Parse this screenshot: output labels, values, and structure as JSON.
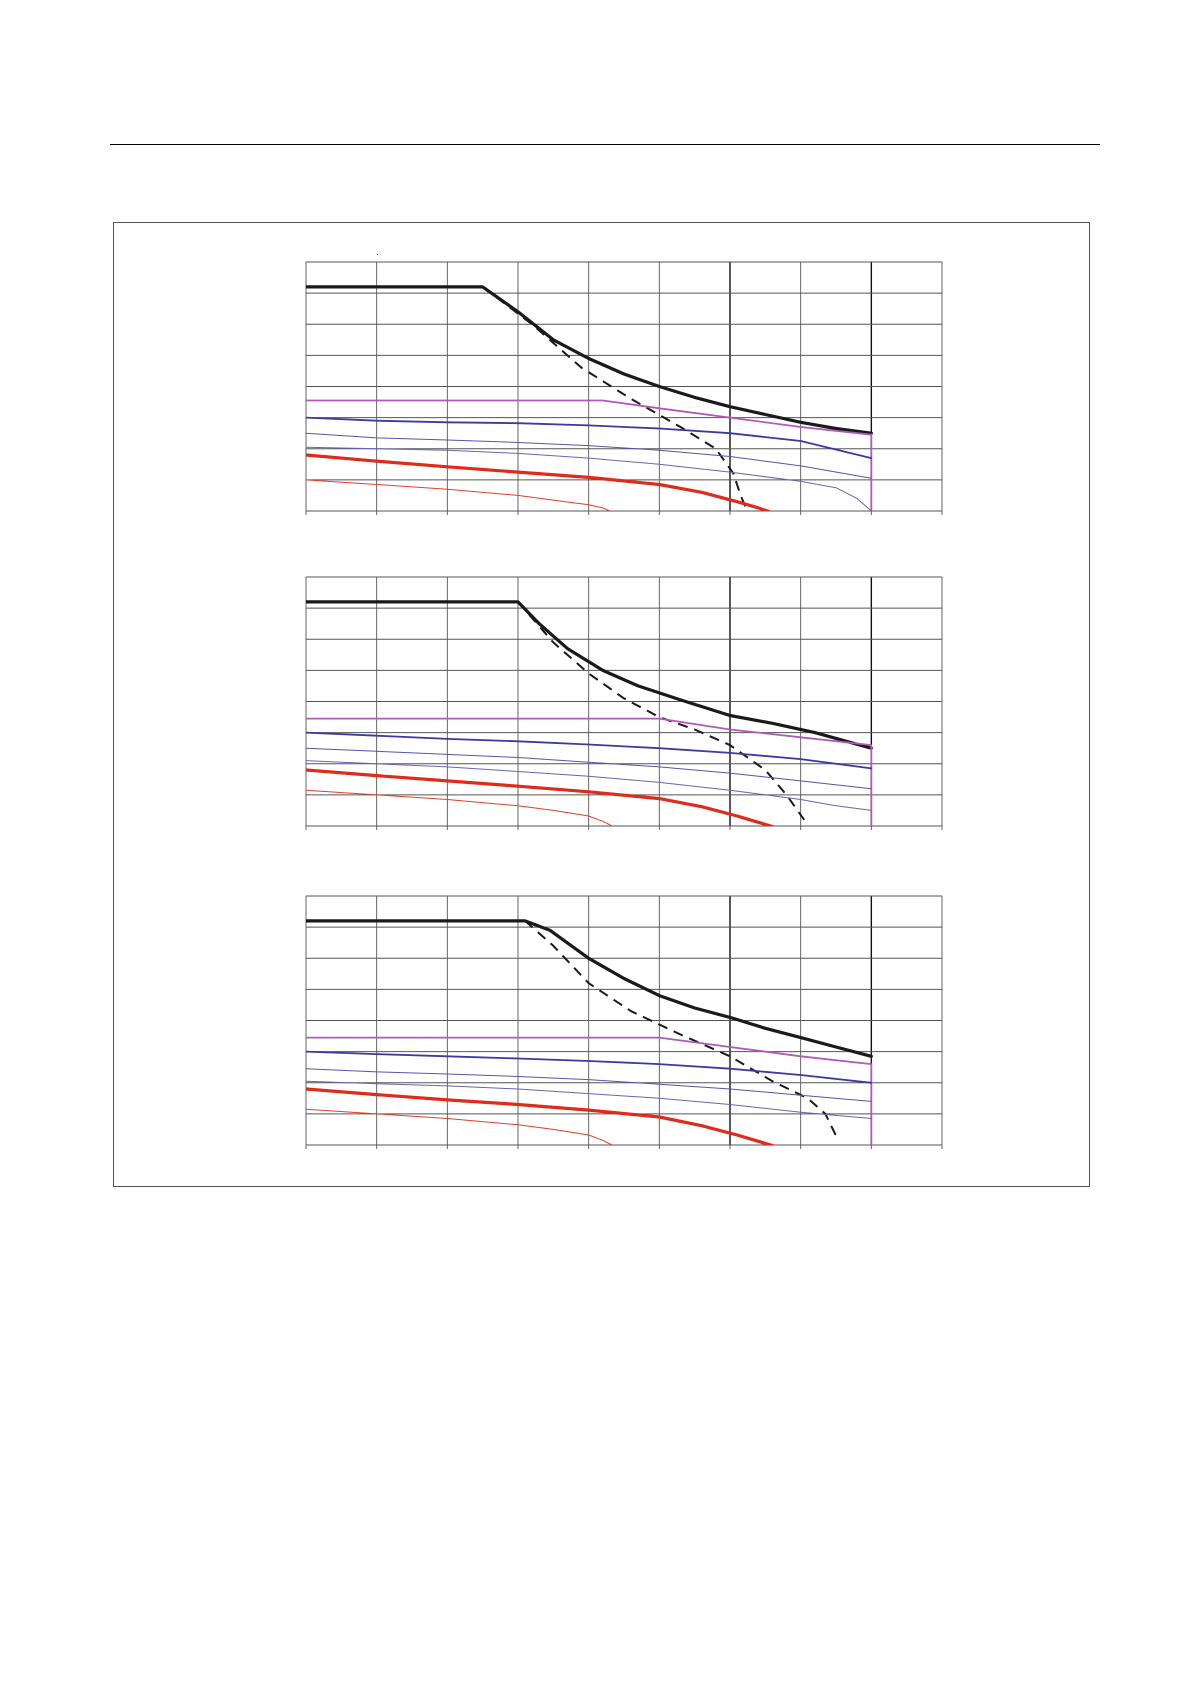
{
  "page": {
    "background": "#ffffff"
  },
  "chart_data": [
    {
      "type": "line",
      "title": "",
      "xlabel": "",
      "ylabel": "",
      "xlim": [
        0,
        9
      ],
      "ylim": [
        0,
        8
      ],
      "grid": true,
      "legend": "none",
      "series": [
        {
          "color": "#1a1a1a",
          "style": "solid-thick",
          "points": [
            [
              0,
              7.2
            ],
            [
              2.5,
              7.2
            ],
            [
              3,
              6.4
            ],
            [
              3.5,
              5.5
            ],
            [
              4,
              4.9
            ],
            [
              4.5,
              4.4
            ],
            [
              5,
              4.0
            ],
            [
              5.5,
              3.65
            ],
            [
              6,
              3.35
            ],
            [
              6.5,
              3.1
            ],
            [
              7,
              2.85
            ],
            [
              7.5,
              2.65
            ],
            [
              8,
              2.5
            ]
          ]
        },
        {
          "color": "#1a1a1a",
          "style": "dashed",
          "points": [
            [
              2.5,
              7.2
            ],
            [
              3.2,
              6.0
            ],
            [
              3.9,
              4.6
            ],
            [
              4.6,
              3.6
            ],
            [
              5.3,
              2.7
            ],
            [
              5.8,
              2.0
            ],
            [
              6.05,
              1.2
            ],
            [
              6.15,
              0.5
            ],
            [
              6.3,
              -0.3
            ]
          ]
        },
        {
          "color": "#b05ab8",
          "style": "solid",
          "points": [
            [
              0,
              3.55
            ],
            [
              4.2,
              3.55
            ],
            [
              5,
              3.3
            ],
            [
              6,
              3.0
            ],
            [
              7,
              2.7
            ],
            [
              8,
              2.45
            ],
            [
              8,
              0
            ]
          ]
        },
        {
          "color": "#3a3aa0",
          "style": "solid-medium",
          "points": [
            [
              0,
              3.0
            ],
            [
              1,
              2.9
            ],
            [
              2,
              2.85
            ],
            [
              3,
              2.82
            ],
            [
              4,
              2.75
            ],
            [
              5,
              2.65
            ],
            [
              6,
              2.5
            ],
            [
              7,
              2.25
            ],
            [
              8,
              1.7
            ]
          ]
        },
        {
          "color": "#5555aa",
          "style": "solid-thin",
          "points": [
            [
              0,
              2.5
            ],
            [
              1,
              2.35
            ],
            [
              2,
              2.28
            ],
            [
              3,
              2.2
            ],
            [
              4,
              2.1
            ],
            [
              5,
              1.95
            ],
            [
              6,
              1.75
            ],
            [
              7,
              1.45
            ],
            [
              8,
              1.05
            ]
          ]
        },
        {
          "color": "#6666b0",
          "style": "solid-thin",
          "points": [
            [
              0,
              2.05
            ],
            [
              1,
              2.0
            ],
            [
              2,
              1.95
            ],
            [
              3,
              1.85
            ],
            [
              4,
              1.7
            ],
            [
              5,
              1.5
            ],
            [
              6,
              1.25
            ],
            [
              7,
              0.95
            ],
            [
              7.5,
              0.75
            ],
            [
              7.8,
              0.4
            ],
            [
              8,
              0.0
            ]
          ]
        },
        {
          "color": "#e02a1a",
          "style": "solid-thick",
          "points": [
            [
              0,
              1.8
            ],
            [
              1,
              1.6
            ],
            [
              2,
              1.42
            ],
            [
              3,
              1.25
            ],
            [
              4,
              1.08
            ],
            [
              5,
              0.85
            ],
            [
              5.6,
              0.6
            ],
            [
              6.1,
              0.3
            ],
            [
              6.4,
              0.1
            ],
            [
              6.65,
              -0.1
            ]
          ]
        },
        {
          "color": "#e0402a",
          "style": "solid-thin",
          "points": [
            [
              0,
              1.0
            ],
            [
              1,
              0.85
            ],
            [
              2,
              0.7
            ],
            [
              3,
              0.5
            ],
            [
              3.5,
              0.35
            ],
            [
              4,
              0.2
            ],
            [
              4.2,
              0.1
            ],
            [
              4.35,
              -0.05
            ]
          ]
        }
      ]
    },
    {
      "type": "line",
      "title": "",
      "xlabel": "",
      "ylabel": "",
      "xlim": [
        0,
        9
      ],
      "ylim": [
        0,
        8
      ],
      "grid": true,
      "legend": "none",
      "series": [
        {
          "color": "#1a1a1a",
          "style": "solid-thick",
          "points": [
            [
              0,
              7.2
            ],
            [
              3,
              7.2
            ],
            [
              3.3,
              6.5
            ],
            [
              3.7,
              5.7
            ],
            [
              4.2,
              5.0
            ],
            [
              4.7,
              4.5
            ],
            [
              5.3,
              4.05
            ],
            [
              6,
              3.55
            ],
            [
              6.6,
              3.3
            ],
            [
              7.2,
              3.0
            ],
            [
              8,
              2.5
            ]
          ]
        },
        {
          "color": "#1a1a1a",
          "style": "dashed",
          "points": [
            [
              3,
              7.2
            ],
            [
              3.5,
              5.9
            ],
            [
              4,
              4.9
            ],
            [
              4.5,
              4.1
            ],
            [
              5,
              3.5
            ],
            [
              5.5,
              3.1
            ],
            [
              6,
              2.6
            ],
            [
              6.5,
              1.8
            ],
            [
              6.8,
              1.0
            ],
            [
              7.05,
              0.2
            ]
          ]
        },
        {
          "color": "#b05ab8",
          "style": "solid",
          "points": [
            [
              0,
              3.45
            ],
            [
              5,
              3.45
            ],
            [
              6,
              3.1
            ],
            [
              7,
              2.85
            ],
            [
              8,
              2.6
            ],
            [
              8,
              0
            ]
          ]
        },
        {
          "color": "#3a3aa0",
          "style": "solid-medium",
          "points": [
            [
              0,
              3.0
            ],
            [
              1,
              2.9
            ],
            [
              2,
              2.8
            ],
            [
              3,
              2.72
            ],
            [
              4,
              2.62
            ],
            [
              5,
              2.5
            ],
            [
              6,
              2.35
            ],
            [
              7,
              2.15
            ],
            [
              8,
              1.85
            ]
          ]
        },
        {
          "color": "#5555aa",
          "style": "solid-thin",
          "points": [
            [
              0,
              2.5
            ],
            [
              1,
              2.4
            ],
            [
              2,
              2.3
            ],
            [
              3,
              2.2
            ],
            [
              4,
              2.05
            ],
            [
              5,
              1.9
            ],
            [
              6,
              1.7
            ],
            [
              7,
              1.45
            ],
            [
              8,
              1.2
            ]
          ]
        },
        {
          "color": "#6666b0",
          "style": "solid-thin",
          "points": [
            [
              0,
              2.1
            ],
            [
              1,
              2.0
            ],
            [
              2,
              1.9
            ],
            [
              3,
              1.75
            ],
            [
              4,
              1.6
            ],
            [
              5,
              1.4
            ],
            [
              6,
              1.15
            ],
            [
              7,
              0.85
            ],
            [
              7.5,
              0.65
            ],
            [
              8,
              0.5
            ]
          ]
        },
        {
          "color": "#e02a1a",
          "style": "solid-thick",
          "points": [
            [
              0,
              1.8
            ],
            [
              1,
              1.62
            ],
            [
              2,
              1.45
            ],
            [
              3,
              1.28
            ],
            [
              4,
              1.1
            ],
            [
              5,
              0.88
            ],
            [
              5.6,
              0.62
            ],
            [
              6.1,
              0.32
            ],
            [
              6.4,
              0.12
            ],
            [
              6.65,
              -0.05
            ]
          ]
        },
        {
          "color": "#e0402a",
          "style": "solid-thin",
          "points": [
            [
              0,
              1.15
            ],
            [
              1,
              1.0
            ],
            [
              2,
              0.85
            ],
            [
              3,
              0.65
            ],
            [
              3.5,
              0.5
            ],
            [
              4,
              0.32
            ],
            [
              4.2,
              0.15
            ],
            [
              4.35,
              -0.02
            ]
          ]
        }
      ]
    },
    {
      "type": "line",
      "title": "",
      "xlabel": "",
      "ylabel": "",
      "xlim": [
        0,
        9
      ],
      "ylim": [
        0,
        8
      ],
      "grid": true,
      "legend": "none",
      "series": [
        {
          "color": "#1a1a1a",
          "style": "solid-thick",
          "points": [
            [
              0,
              7.2
            ],
            [
              3.1,
              7.2
            ],
            [
              3.45,
              6.9
            ],
            [
              4,
              6.0
            ],
            [
              4.5,
              5.35
            ],
            [
              5,
              4.8
            ],
            [
              5.5,
              4.4
            ],
            [
              6,
              4.1
            ],
            [
              6.5,
              3.75
            ],
            [
              7,
              3.45
            ],
            [
              7.5,
              3.15
            ],
            [
              8,
              2.85
            ]
          ]
        },
        {
          "color": "#1a1a1a",
          "style": "dashed",
          "points": [
            [
              3.1,
              7.2
            ],
            [
              3.5,
              6.4
            ],
            [
              4,
              5.2
            ],
            [
              4.6,
              4.3
            ],
            [
              5.3,
              3.55
            ],
            [
              6,
              2.85
            ],
            [
              6.6,
              2.05
            ],
            [
              7.1,
              1.5
            ],
            [
              7.35,
              1.0
            ],
            [
              7.5,
              0.3
            ]
          ]
        },
        {
          "color": "#b05ab8",
          "style": "solid",
          "points": [
            [
              0,
              3.45
            ],
            [
              5,
              3.45
            ],
            [
              6,
              3.15
            ],
            [
              7,
              2.85
            ],
            [
              8,
              2.6
            ],
            [
              8,
              0
            ]
          ]
        },
        {
          "color": "#3a3aa0",
          "style": "solid-medium",
          "points": [
            [
              0,
              3.0
            ],
            [
              1,
              2.92
            ],
            [
              2,
              2.85
            ],
            [
              3,
              2.78
            ],
            [
              4,
              2.7
            ],
            [
              5,
              2.6
            ],
            [
              6,
              2.45
            ],
            [
              7,
              2.25
            ],
            [
              8,
              2.0
            ]
          ]
        },
        {
          "color": "#5555aa",
          "style": "solid-thin",
          "points": [
            [
              0,
              2.45
            ],
            [
              1,
              2.35
            ],
            [
              2,
              2.28
            ],
            [
              3,
              2.2
            ],
            [
              4,
              2.1
            ],
            [
              5,
              1.95
            ],
            [
              6,
              1.8
            ],
            [
              7,
              1.6
            ],
            [
              8,
              1.4
            ]
          ]
        },
        {
          "color": "#6666b0",
          "style": "solid-thin",
          "points": [
            [
              0,
              2.05
            ],
            [
              1,
              1.97
            ],
            [
              2,
              1.9
            ],
            [
              3,
              1.8
            ],
            [
              4,
              1.65
            ],
            [
              5,
              1.5
            ],
            [
              6,
              1.3
            ],
            [
              7,
              1.05
            ],
            [
              8,
              0.85
            ]
          ]
        },
        {
          "color": "#e02a1a",
          "style": "solid-thick",
          "points": [
            [
              0,
              1.8
            ],
            [
              1,
              1.62
            ],
            [
              2,
              1.45
            ],
            [
              3,
              1.3
            ],
            [
              4,
              1.12
            ],
            [
              5,
              0.9
            ],
            [
              5.6,
              0.62
            ],
            [
              6.1,
              0.32
            ],
            [
              6.4,
              0.12
            ],
            [
              6.65,
              -0.05
            ]
          ]
        },
        {
          "color": "#e0402a",
          "style": "solid-thin",
          "points": [
            [
              0,
              1.15
            ],
            [
              1,
              1.0
            ],
            [
              2,
              0.85
            ],
            [
              3,
              0.65
            ],
            [
              3.5,
              0.5
            ],
            [
              4,
              0.32
            ],
            [
              4.2,
              0.15
            ],
            [
              4.35,
              -0.02
            ]
          ]
        }
      ]
    }
  ]
}
